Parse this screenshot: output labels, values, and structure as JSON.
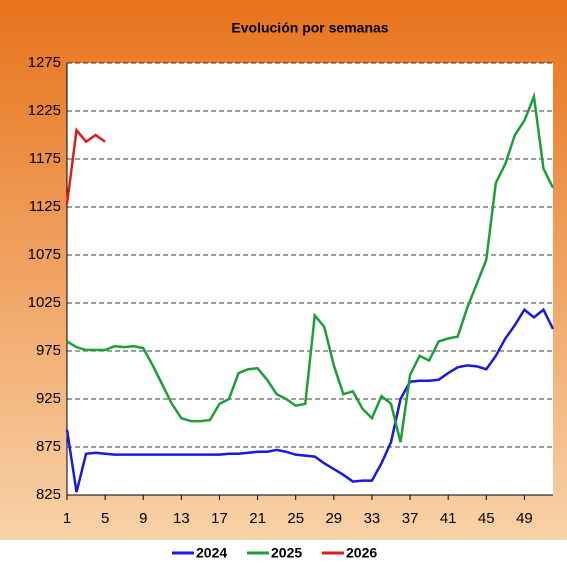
{
  "chart_data": {
    "type": "line",
    "title": "Evolución por semanas",
    "x": [
      1,
      2,
      3,
      4,
      5,
      6,
      7,
      8,
      9,
      10,
      11,
      12,
      13,
      14,
      15,
      16,
      17,
      18,
      19,
      20,
      21,
      22,
      23,
      24,
      25,
      26,
      27,
      28,
      29,
      30,
      31,
      32,
      33,
      34,
      35,
      36,
      37,
      38,
      39,
      40,
      41,
      42,
      43,
      44,
      45,
      46,
      47,
      48,
      49,
      50,
      51,
      52
    ],
    "xlim": [
      1,
      52
    ],
    "xticks": [
      1,
      5,
      9,
      13,
      17,
      21,
      25,
      29,
      33,
      37,
      41,
      45,
      49
    ],
    "ylim": [
      825,
      1275
    ],
    "yticks": [
      825,
      875,
      925,
      975,
      1025,
      1075,
      1125,
      1175,
      1225,
      1275
    ],
    "grid": true,
    "legend": "bottom",
    "series": [
      {
        "name": "2024",
        "color": "#1a1adc",
        "values": [
          893,
          828,
          868,
          869,
          868,
          867,
          867,
          867,
          867,
          867,
          867,
          867,
          867,
          867,
          867,
          867,
          867,
          868,
          868,
          869,
          870,
          870,
          872,
          870,
          867,
          866,
          865,
          858,
          852,
          846,
          839,
          840,
          840,
          858,
          880,
          925,
          943,
          944,
          944,
          945,
          952,
          958,
          960,
          959,
          956,
          970,
          988,
          1002,
          1018,
          1010,
          1018,
          998
        ]
      },
      {
        "name": "2025",
        "color": "#1e9e3a",
        "values": [
          985,
          979,
          976,
          976,
          976,
          980,
          979,
          980,
          978,
          960,
          940,
          920,
          905,
          902,
          902,
          903,
          920,
          925,
          952,
          956,
          957,
          945,
          930,
          925,
          918,
          920,
          1012,
          1000,
          960,
          930,
          933,
          915,
          905,
          928,
          920,
          880,
          950,
          970,
          965,
          985,
          988,
          990,
          1020,
          1045,
          1070,
          1150,
          1170,
          1200,
          1215,
          1240,
          1165,
          1145
        ]
      },
      {
        "name": "2026",
        "color": "#e01b1b",
        "values": [
          1128,
          1205,
          1193,
          1200,
          1193,
          null,
          null,
          null,
          null,
          null,
          null,
          null,
          null,
          null,
          null,
          null,
          null,
          null,
          null,
          null,
          null,
          null,
          null,
          null,
          null,
          null,
          null,
          null,
          null,
          null,
          null,
          null,
          null,
          null,
          null,
          null,
          null,
          null,
          null,
          null,
          null,
          null,
          null,
          null,
          null,
          null,
          null,
          null,
          null,
          null,
          null,
          null
        ]
      }
    ]
  }
}
